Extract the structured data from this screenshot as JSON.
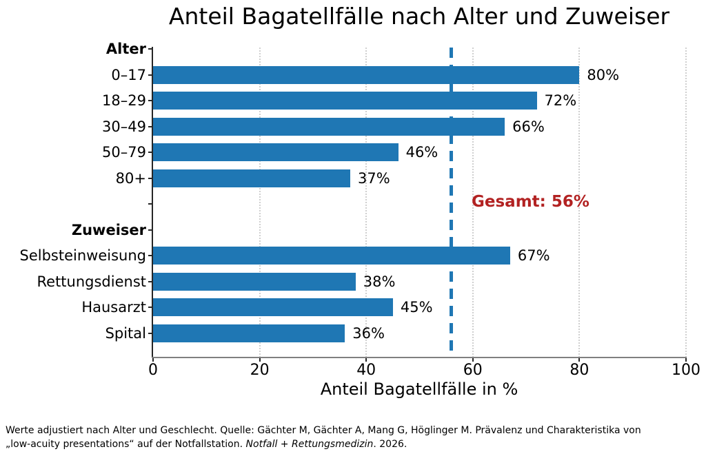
{
  "title": "Anteil Bagatellfälle nach Alter und Zuweiser",
  "chart_data": {
    "type": "bar",
    "orientation": "horizontal",
    "title": "Anteil Bagatellfälle nach Alter und Zuweiser",
    "xlabel": "Anteil Bagatellfälle in %",
    "xlim": [
      0,
      100
    ],
    "xticks": [
      0,
      20,
      40,
      60,
      80,
      100
    ],
    "grid": "dotted-vertical",
    "legend": "none",
    "bar_color": "#1f77b4",
    "value_suffix": "%",
    "groups": [
      {
        "header": "Alter",
        "items": [
          {
            "label": "0–17",
            "value": 80
          },
          {
            "label": "18–29",
            "value": 72
          },
          {
            "label": "30–49",
            "value": 66
          },
          {
            "label": "50–79",
            "value": 46
          },
          {
            "label": "80+",
            "value": 37
          }
        ]
      },
      {
        "header": "Zuweiser",
        "items": [
          {
            "label": "Selbsteinweisung",
            "value": 67
          },
          {
            "label": "Rettungsdienst",
            "value": 38
          },
          {
            "label": "Hausarzt",
            "value": 45
          },
          {
            "label": "Spital",
            "value": 36
          }
        ]
      }
    ],
    "reference_line": {
      "value": 56,
      "style": "dashed",
      "line_color": "#1f77b4",
      "label": "Gesamt: 56%",
      "label_color": "#b22222"
    }
  },
  "footnote": {
    "line1": "Werte adjustiert nach Alter und Geschlecht. Quelle: Gächter M, Gächter A, Mang G, Höglinger M. Prävalenz und Charakteristika von",
    "line2_pre": "„low-acuity presentations“ auf der Notfallstation. ",
    "line2_italic": "Notfall + Rettungsmedizin",
    "line2_post": ". 2026."
  }
}
